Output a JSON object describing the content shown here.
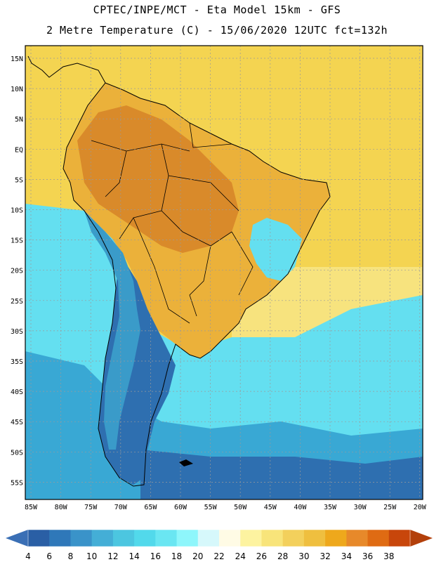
{
  "header": {
    "title_line1": "CPTEC/INPE/MCT -  Eta Model 15km - GFS",
    "title_line2": "2 Metre Temperature (C) - 15/06/2020 12UTC fct=132h"
  },
  "map": {
    "lat_labels": [
      "15N",
      "10N",
      "5N",
      "EQ",
      "5S",
      "10S",
      "15S",
      "20S",
      "25S",
      "30S",
      "35S",
      "40S",
      "45S",
      "50S",
      "55S"
    ],
    "lon_labels": [
      "85W",
      "80W",
      "75W",
      "70W",
      "65W",
      "60W",
      "55W",
      "50W",
      "45W",
      "40W",
      "35W",
      "30W",
      "25W",
      "20W"
    ],
    "grid": true,
    "colors": {
      "ocean_north": "#f4d451",
      "ocean_subtropic": "#f7e37e",
      "land_hot": "#ebb13a",
      "land_very_hot": "#d98a2a",
      "andes_cold": "#3a9bc9",
      "south_cold": "#2e6fb0",
      "ocean_cool": "#64dff0",
      "ocean_cold": "#39a8d4"
    }
  },
  "colorbar": {
    "labels": [
      "4",
      "6",
      "8",
      "10",
      "12",
      "14",
      "16",
      "18",
      "20",
      "22",
      "24",
      "26",
      "28",
      "30",
      "32",
      "34",
      "36",
      "38"
    ],
    "colors": [
      "#2a5fa5",
      "#2f78b9",
      "#3a93c9",
      "#44aed6",
      "#4cc6e0",
      "#52d9eb",
      "#6ae6f2",
      "#8ef6fb",
      "#d6f8fb",
      "#fffbe5",
      "#fdf3a0",
      "#f8e47a",
      "#f3d05c",
      "#efbf3f",
      "#eea81c",
      "#e7892a",
      "#df6b13",
      "#c8460b"
    ],
    "low_arrow_color": "#3a6fb5",
    "high_arrow_color": "#b3400b"
  }
}
